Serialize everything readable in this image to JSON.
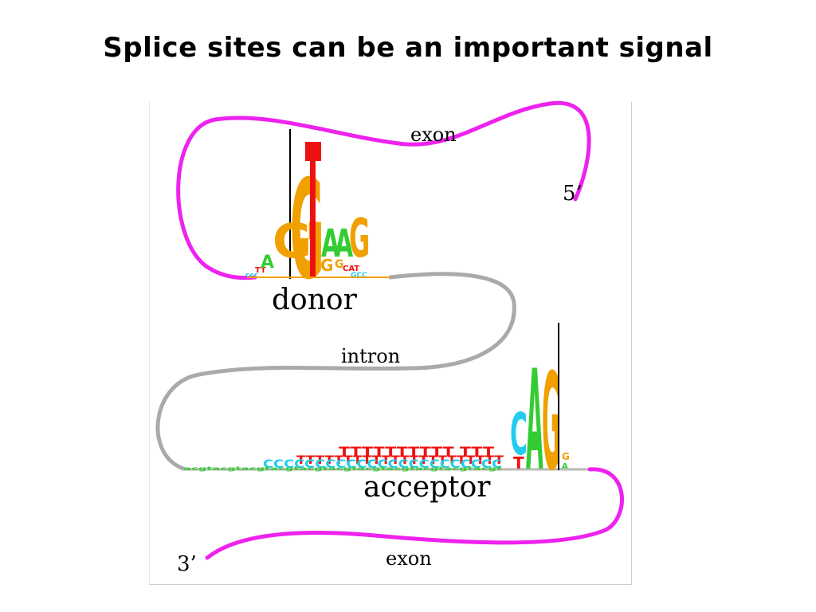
{
  "slide": {
    "title": "Splice sites can be an important signal"
  },
  "diagram": {
    "labels": {
      "exon_top": "exon",
      "five_prime": "5’",
      "donor": "donor",
      "intron": "intron",
      "acceptor": "acceptor",
      "three_prime": "3’",
      "exon_bottom": "exon"
    },
    "colors": {
      "exon_strand": "#ee22ee",
      "intron_strand": "#aaaaaa",
      "A": "#33cc33",
      "C": "#22ccee",
      "G": "#f0a000",
      "T": "#ee1111"
    },
    "donor_logo": [
      {
        "stack": [
          "C",
          "T",
          "G",
          "A"
        ]
      },
      {
        "stack": [
          "T",
          "C",
          "G"
        ]
      },
      {
        "stack": [
          "T",
          "A",
          "G"
        ]
      },
      {
        "stack": [
          "G"
        ]
      },
      {
        "stack": [
          "T"
        ]
      },
      {
        "stack": [
          "C",
          "T",
          "G",
          "A"
        ]
      },
      {
        "stack": [
          "C",
          "T",
          "G",
          "A"
        ]
      },
      {
        "stack": [
          "C",
          "T",
          "A",
          "G"
        ]
      },
      {
        "stack": [
          "C",
          "T"
        ]
      }
    ],
    "acceptor_logo": {
      "background_letters": [
        "T",
        "C"
      ],
      "core": [
        "C",
        "A",
        "G"
      ],
      "after": [
        "A",
        "G"
      ]
    }
  }
}
